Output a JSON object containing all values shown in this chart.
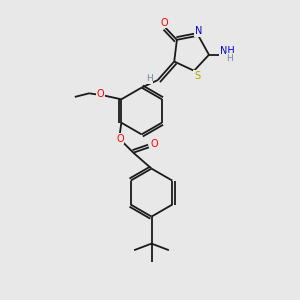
{
  "background_color": "#e8e8e8",
  "bond_color": "#1a1a1a",
  "atom_colors": {
    "O": "#ff0000",
    "N": "#0000cc",
    "S": "#aaaa00",
    "C": "#1a1a1a",
    "H": "#778899"
  },
  "figsize": [
    3.0,
    3.0
  ],
  "dpi": 100,
  "lw": 1.3,
  "fs": 7.0
}
